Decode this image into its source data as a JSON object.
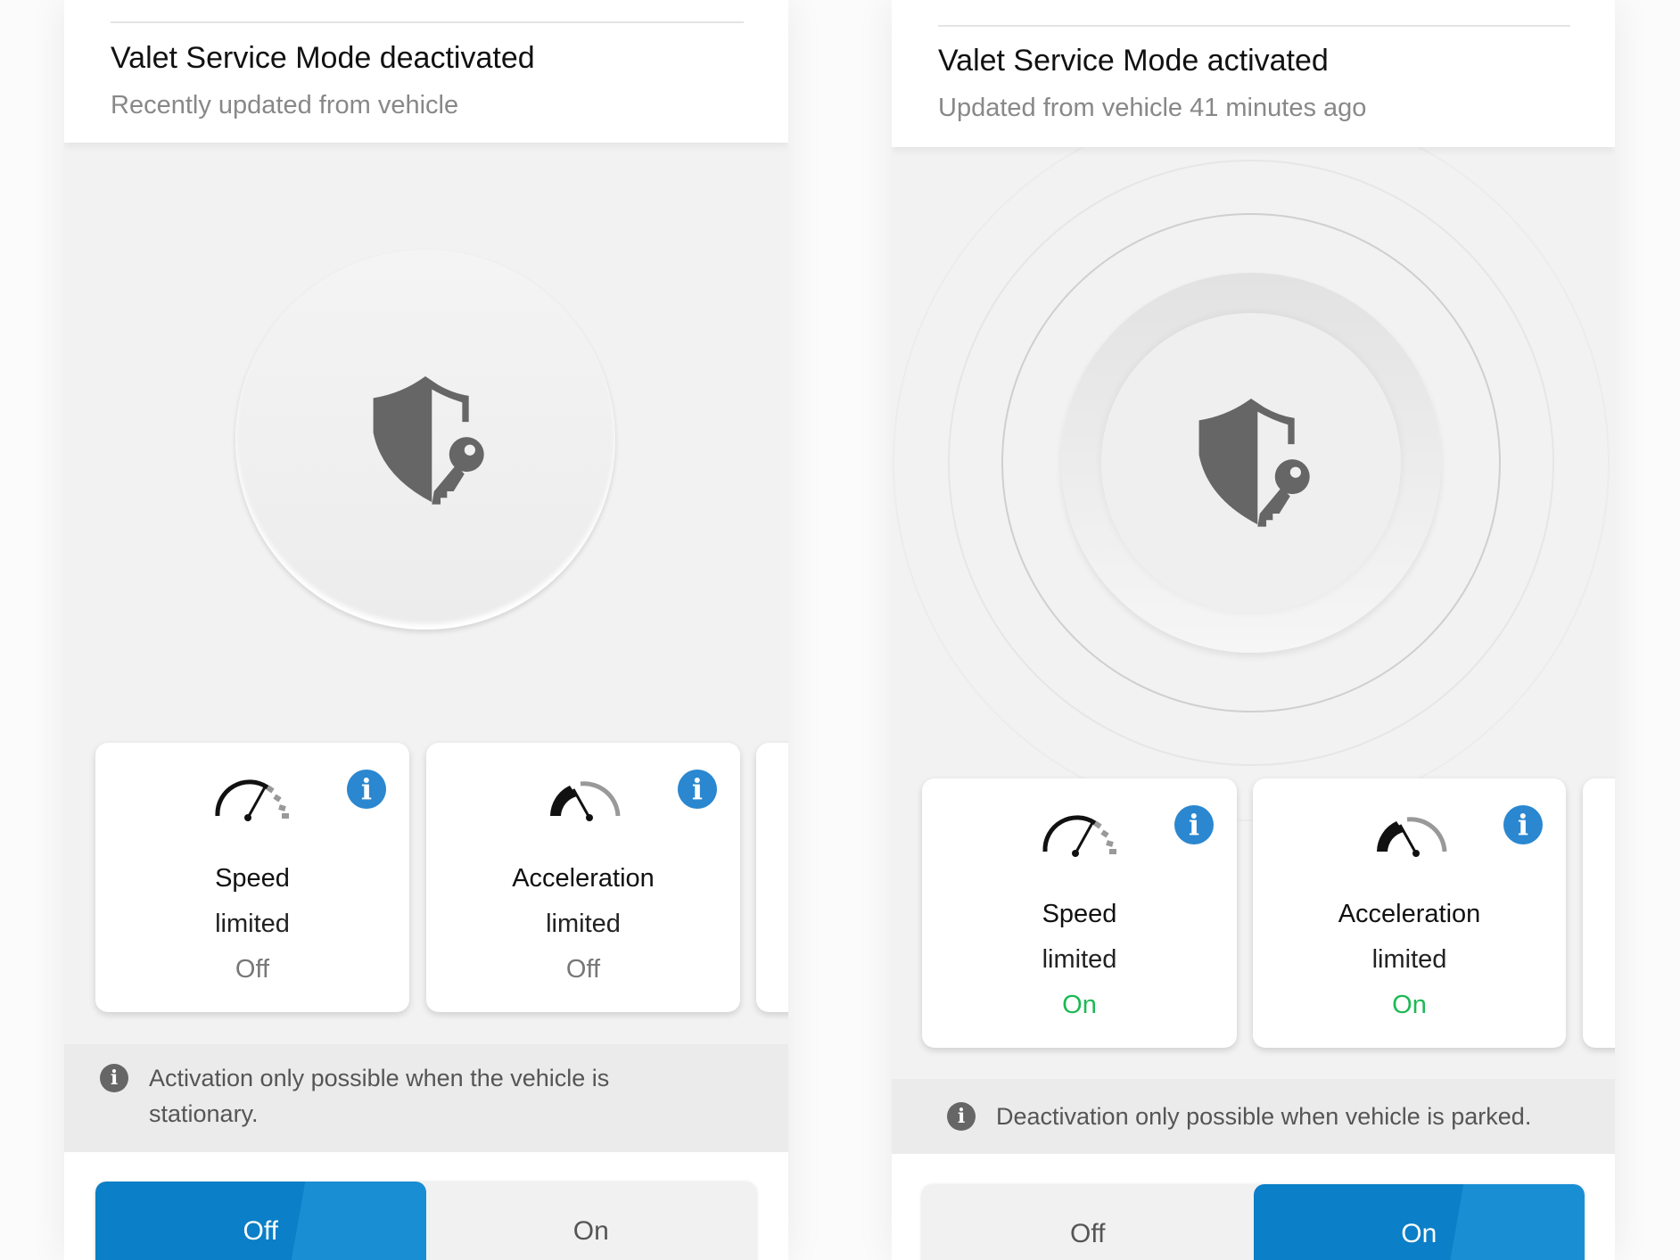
{
  "panels": [
    {
      "title": "Valet Service Mode deactivated",
      "subtitle": "Recently updated from vehicle",
      "icon": "shield-key-icon",
      "cards": [
        {
          "icon": "speedometer-icon",
          "line1": "Speed",
          "line2": "limited",
          "status": "Off"
        },
        {
          "icon": "acceleration-gauge-icon",
          "line1": "Acceleration",
          "line2": "limited",
          "status": "Off"
        }
      ],
      "notice": "Activation only possible when the vehicle is stationary.",
      "toggle": {
        "off": "Off",
        "on": "On",
        "selected": "Off"
      }
    },
    {
      "title": "Valet Service Mode activated",
      "subtitle": "Updated from vehicle 41 minutes ago",
      "icon": "shield-key-icon",
      "cards": [
        {
          "icon": "speedometer-icon",
          "line1": "Speed",
          "line2": "limited",
          "status": "On"
        },
        {
          "icon": "acceleration-gauge-icon",
          "line1": "Acceleration",
          "line2": "limited",
          "status": "On"
        }
      ],
      "notice": "Deactivation only possible when vehicle is parked.",
      "toggle": {
        "off": "Off",
        "on": "On",
        "selected": "On"
      }
    }
  ],
  "colors": {
    "accent": "#0b7fc7",
    "info": "#2a87d0",
    "on": "#1db954",
    "off": "#777777"
  }
}
